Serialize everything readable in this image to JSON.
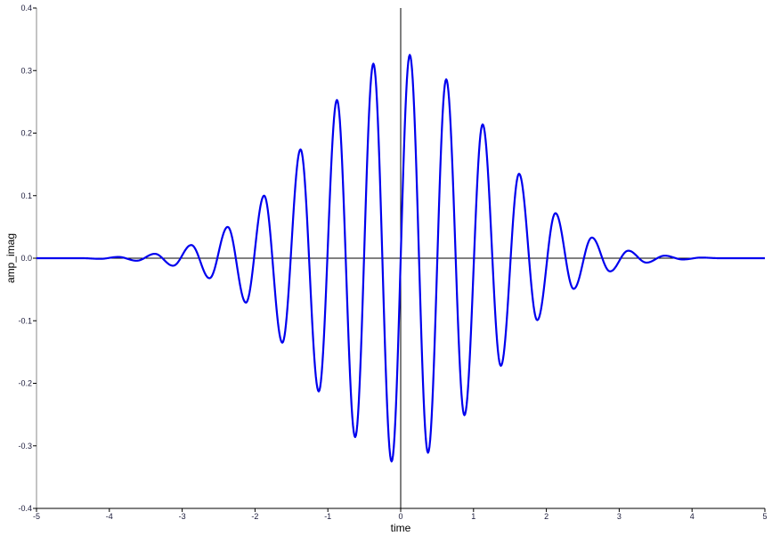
{
  "chart_data": {
    "type": "line",
    "xlabel": "time",
    "ylabel": "amp_imag",
    "xlim": [
      -5,
      5
    ],
    "ylim": [
      -0.4,
      0.4
    ],
    "x_ticks": [
      "-5",
      "-4",
      "-3",
      "-2",
      "-1",
      "0",
      "1",
      "2",
      "3",
      "4",
      "5"
    ],
    "y_ticks": [
      "0.4",
      "0.3",
      "0.2",
      "0.1",
      "0.0",
      "-0.1",
      "-0.2",
      "-0.3",
      "-0.4"
    ],
    "grid": false,
    "zero_lines": true,
    "series_color": "#0000ee",
    "points": [
      [
        -5,
        0
      ],
      [
        -4.375,
        0
      ],
      [
        -4.125,
        -0.001
      ],
      [
        -3.875,
        0.002
      ],
      [
        -3.625,
        -0.004
      ],
      [
        -3.375,
        0.007
      ],
      [
        -3.125,
        -0.012
      ],
      [
        -2.875,
        0.021
      ],
      [
        -2.625,
        -0.032
      ],
      [
        -2.375,
        0.05
      ],
      [
        -2.125,
        -0.071
      ],
      [
        -1.875,
        0.1
      ],
      [
        -1.625,
        -0.135
      ],
      [
        -1.375,
        0.174
      ],
      [
        -1.125,
        -0.213
      ],
      [
        -0.875,
        0.253
      ],
      [
        -0.625,
        -0.286
      ],
      [
        -0.375,
        0.311
      ],
      [
        -0.125,
        -0.325
      ],
      [
        0.125,
        0.325
      ],
      [
        0.375,
        -0.311
      ],
      [
        0.625,
        0.286
      ],
      [
        0.875,
        -0.251
      ],
      [
        1.125,
        0.214
      ],
      [
        1.375,
        -0.172
      ],
      [
        1.625,
        0.135
      ],
      [
        1.875,
        -0.099
      ],
      [
        2.125,
        0.072
      ],
      [
        2.375,
        -0.049
      ],
      [
        2.625,
        0.033
      ],
      [
        2.875,
        -0.021
      ],
      [
        3.125,
        0.012
      ],
      [
        3.375,
        -0.007
      ],
      [
        3.625,
        0.004
      ],
      [
        3.875,
        -0.002
      ],
      [
        4.125,
        0.001
      ],
      [
        4.375,
        0
      ],
      [
        5,
        0
      ]
    ]
  }
}
